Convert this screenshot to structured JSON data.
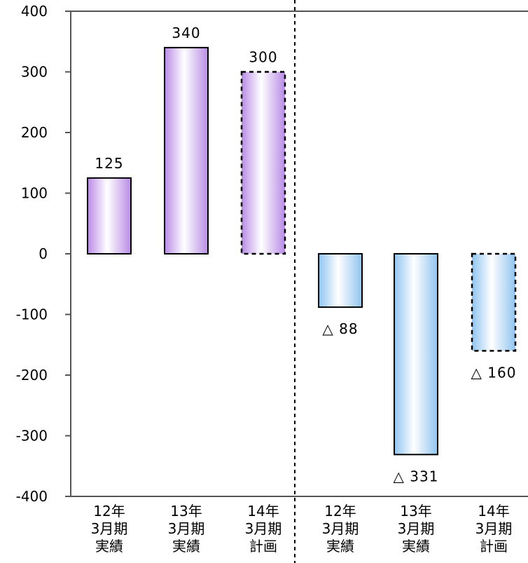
{
  "chart_data": {
    "type": "bar",
    "title": "",
    "xlabel": "",
    "ylabel": "",
    "ylim": [
      -400,
      400
    ],
    "yticks": [
      "400",
      "300",
      "200",
      "100",
      "0",
      "-100",
      "-200",
      "-300",
      "-400"
    ],
    "grid": false,
    "categories": [
      [
        "12年",
        "3月期",
        "実績"
      ],
      [
        "13年",
        "3月期",
        "実績"
      ],
      [
        "14年",
        "3月期",
        "計画"
      ],
      [
        "12年",
        "3月期",
        "実績"
      ],
      [
        "13年",
        "3月期",
        "実績"
      ],
      [
        "14年",
        "3月期",
        "計画"
      ]
    ],
    "values": [
      125,
      340,
      300,
      -88,
      -331,
      -160
    ],
    "value_labels": [
      "125",
      "340",
      "300",
      "△ 88",
      "△ 331",
      "△ 160"
    ],
    "bar_styles": [
      "actual",
      "actual",
      "plan",
      "actual",
      "actual",
      "plan"
    ],
    "colors": {
      "group1": "#b98be6",
      "group2": "#8fc4f0",
      "outline": "#000000",
      "separator": "#000000"
    }
  }
}
